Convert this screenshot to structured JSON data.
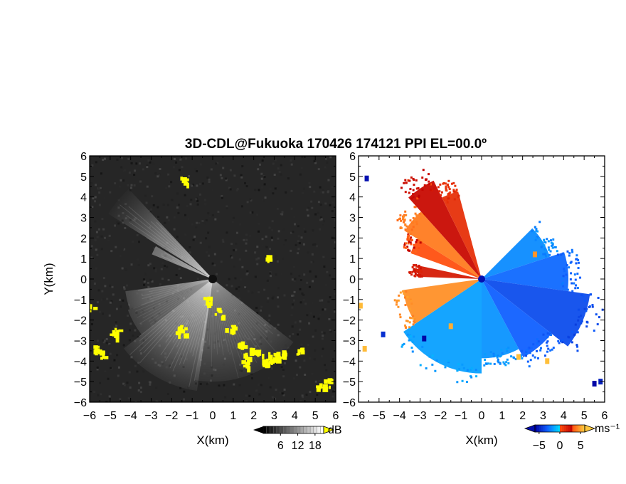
{
  "title": "3D-CDL@Fukuoka 170426 174121 PPI EL=00.0º",
  "chart_data": [
    {
      "type": "heatmap",
      "panel": "left",
      "variable": "signal intensity",
      "xlabel": "X(km)",
      "ylabel": "Y(km)",
      "xlim": [
        -6,
        6
      ],
      "ylim": [
        -6,
        6
      ],
      "xticks": [
        "-6",
        "-5",
        "-4",
        "-3",
        "-2",
        "-1",
        "0",
        "1",
        "2",
        "3",
        "4",
        "5",
        "6"
      ],
      "yticks": [
        "-6",
        "-5",
        "-4",
        "-3",
        "-2",
        "-1",
        "0",
        "1",
        "2",
        "3",
        "4",
        "5",
        "6"
      ],
      "colorbar": {
        "ticks": [
          "6",
          "12",
          "18"
        ],
        "unit": "dB",
        "range": [
          0,
          21
        ],
        "colors": [
          "#000000",
          "#ffffff"
        ],
        "over_color": "#ffff00"
      },
      "background_color": "#262626",
      "beams": [
        {
          "az_from": 128,
          "az_to": 190,
          "intensity": 0.45,
          "range_km": 5.0
        },
        {
          "az_from": 188,
          "az_to": 232,
          "intensity": 0.75,
          "range_km": 5.5
        },
        {
          "az_from": 232,
          "az_to": 250,
          "intensity": 0.5,
          "range_km": 4.4
        },
        {
          "az_from": 250,
          "az_to": 262,
          "intensity": 0.6,
          "range_km": 4.3
        },
        {
          "az_from": 292,
          "az_to": 300,
          "intensity": 0.7,
          "range_km": 3.2
        },
        {
          "az_from": 302,
          "az_to": 317,
          "intensity": 0.75,
          "range_km": 6.0
        }
      ],
      "clutter_km": [
        {
          "x": -6.0,
          "y": -1.3
        },
        {
          "x": -5.8,
          "y": -3.4
        },
        {
          "x": -5.5,
          "y": -3.6
        },
        {
          "x": -4.9,
          "y": -2.7
        },
        {
          "x": -4.8,
          "y": -2.5
        },
        {
          "x": -1.5,
          "y": -2.3
        },
        {
          "x": -1.6,
          "y": -2.5
        },
        {
          "x": -0.3,
          "y": -1.0
        },
        {
          "x": 0.3,
          "y": -1.6
        },
        {
          "x": 0.8,
          "y": -2.4
        },
        {
          "x": 1.3,
          "y": -3.2
        },
        {
          "x": 1.7,
          "y": -3.6
        },
        {
          "x": 2.0,
          "y": -3.5
        },
        {
          "x": 2.5,
          "y": -3.8
        },
        {
          "x": 2.9,
          "y": -3.7
        },
        {
          "x": 3.3,
          "y": -3.6
        },
        {
          "x": 1.6,
          "y": -4.1
        },
        {
          "x": 2.7,
          "y": -4.1
        },
        {
          "x": 4.2,
          "y": -3.5
        },
        {
          "x": 5.2,
          "y": -5.1
        },
        {
          "x": 5.6,
          "y": -5.0
        },
        {
          "x": -1.4,
          "y": 4.8
        },
        {
          "x": 2.6,
          "y": 1.1
        }
      ]
    },
    {
      "type": "heatmap",
      "panel": "right",
      "variable": "radial velocity",
      "xlabel": "X(km)",
      "xlim": [
        -6,
        6
      ],
      "ylim": [
        -6,
        6
      ],
      "xticks": [
        "-6",
        "-5",
        "-4",
        "-3",
        "-2",
        "-1",
        "0",
        "1",
        "2",
        "3",
        "4",
        "5",
        "6"
      ],
      "yticks": [
        "-6",
        "-5",
        "-4",
        "-3",
        "-2",
        "-1",
        "0",
        "1",
        "2",
        "3",
        "4",
        "5",
        "6"
      ],
      "colorbar": {
        "ticks": [
          "-5",
          "0",
          "5"
        ],
        "unit": "ms⁻¹",
        "range": [
          -6,
          6
        ],
        "negative_colors": [
          "#00e0ff",
          "#1060ff",
          "#0000a0"
        ],
        "positive_colors": [
          "#c00000",
          "#ff5010",
          "#ffd040"
        ]
      },
      "background_color": "#ffffff",
      "sectors": [
        {
          "az_from": 180,
          "az_to": 236,
          "range_km": 5.0,
          "velocity": -1.5
        },
        {
          "az_from": 236,
          "az_to": 262,
          "range_km": 4.2,
          "velocity": 4.5
        },
        {
          "az_from": 272,
          "az_to": 282,
          "range_km": 3.4,
          "velocity": 2.0
        },
        {
          "az_from": 290,
          "az_to": 302,
          "range_km": 4.0,
          "velocity": 3.0
        },
        {
          "az_from": 302,
          "az_to": 318,
          "range_km": 4.8,
          "velocity": 4.0
        },
        {
          "az_from": 318,
          "az_to": 334,
          "range_km": 5.8,
          "velocity": 2.6
        },
        {
          "az_from": 334,
          "az_to": 345,
          "range_km": 4.8,
          "velocity": 1.2
        },
        {
          "az_from": 45,
          "az_to": 72,
          "range_km": 3.8,
          "velocity": -2.0
        },
        {
          "az_from": 72,
          "az_to": 98,
          "range_km": 4.6,
          "velocity": -2.8
        },
        {
          "az_from": 98,
          "az_to": 128,
          "range_km": 5.8,
          "velocity": -3.6
        },
        {
          "az_from": 128,
          "az_to": 152,
          "range_km": 4.7,
          "velocity": -3.0
        },
        {
          "az_from": 152,
          "az_to": 180,
          "range_km": 4.2,
          "velocity": -1.8
        }
      ],
      "specks_km": [
        {
          "x": -5.6,
          "y": 4.9,
          "velocity": -5.5
        },
        {
          "x": -5.9,
          "y": -1.3,
          "velocity": 5.5
        },
        {
          "x": -5.7,
          "y": -3.4,
          "velocity": 5.5
        },
        {
          "x": -4.8,
          "y": -2.7,
          "velocity": -4.5
        },
        {
          "x": -1.5,
          "y": -2.3,
          "velocity": 5.2
        },
        {
          "x": -2.8,
          "y": -2.9,
          "velocity": -5.8
        },
        {
          "x": 2.6,
          "y": 1.2,
          "velocity": 4.6
        },
        {
          "x": 5.5,
          "y": -5.1,
          "velocity": -5.8
        },
        {
          "x": 5.8,
          "y": -5.0,
          "velocity": -5.0
        },
        {
          "x": 3.2,
          "y": -4.0,
          "velocity": 5.6
        },
        {
          "x": 1.8,
          "y": -3.8,
          "velocity": 5.6
        }
      ]
    }
  ]
}
